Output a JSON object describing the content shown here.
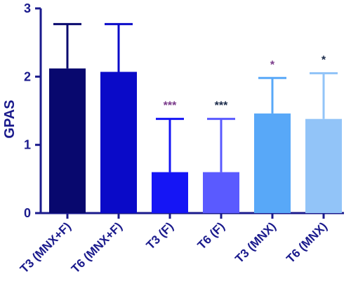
{
  "chart_data": {
    "type": "bar",
    "title": "",
    "xlabel": "",
    "ylabel": "GPAS",
    "ylim": [
      0,
      3
    ],
    "yticks": [
      "0",
      "1",
      "2",
      "3"
    ],
    "grid": false,
    "categories": [
      "T3 (MNX+F)",
      "T6 (MNX+F)",
      "T3 (F)",
      "T6 (F)",
      "T3 (MNX)",
      "T6 (MNX)"
    ],
    "values": [
      2.12,
      2.07,
      0.6,
      0.6,
      1.46,
      1.38
    ],
    "error_upper": [
      0.65,
      0.7,
      0.78,
      0.78,
      0.52,
      0.67
    ],
    "bar_colors": [
      "#08086e",
      "#0a0ac8",
      "#1515f5",
      "#5a5aff",
      "#58a8f8",
      "#92c4f8"
    ],
    "error_colors": [
      "#08086e",
      "#0a0ac8",
      "#1515f5",
      "#5a5aff",
      "#58a8f8",
      "#92c4f8"
    ],
    "annotations": [
      "",
      "",
      "***",
      "***",
      "*",
      "*"
    ],
    "annotation_colors": [
      "#000000",
      "#000000",
      "#7a3a8a",
      "#1a2a4a",
      "#7a3a8a",
      "#1a2a4a"
    ],
    "axis_color": "#1a1a8c"
  }
}
